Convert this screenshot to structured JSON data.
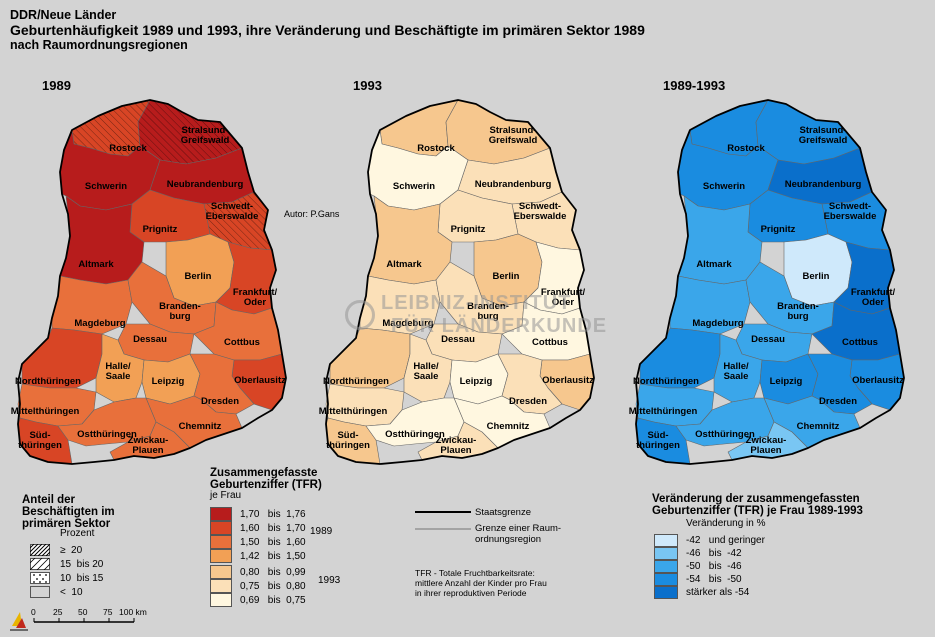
{
  "header": {
    "region": "DDR/Neue Länder",
    "title": "Geburtenhäufigkeit 1989 und 1993, ihre Veränderung und Beschäftigte im primären Sektor 1989",
    "subtitle": "nach Raumordnungsregionen"
  },
  "author": "Autor:   P.Gans",
  "watermark": {
    "line1": "LEIBNIZ-INSTITUT",
    "line2": "FÜR LÄNDERKUNDE"
  },
  "maps": [
    {
      "key": "m1989",
      "title": "1989"
    },
    {
      "key": "m1993",
      "title": "1993"
    },
    {
      "key": "mchg",
      "title": "1989-1993"
    }
  ],
  "regions": [
    {
      "id": "rostock",
      "label": "Rostock",
      "tfr89": "1,60-1,70",
      "tfr93": "0,80-0,99",
      "chg": "-54 bis -50",
      "agri": ">=20"
    },
    {
      "id": "stralsund",
      "label": "Stralsund-\nGreifswald",
      "tfr89": "1,70-1,76",
      "tfr93": "0,80-0,99",
      "chg": "-54 bis -50",
      "agri": ">=20"
    },
    {
      "id": "schwerin",
      "label": "Schwerin",
      "tfr89": "1,70-1,76",
      "tfr93": "0,69-0,75",
      "chg": "-54 bis -50"
    },
    {
      "id": "neubrandenburg",
      "label": "Neubrandenburg",
      "tfr89": "1,70-1,76",
      "tfr93": "0,75-0,80",
      "chg": "stärker als -54"
    },
    {
      "id": "schwedt",
      "label": "Schwedt-\nEberswalde",
      "tfr89": "1,60-1,70",
      "tfr93": "0,75-0,80",
      "chg": "-54 bis -50",
      "agri": ">=20"
    },
    {
      "id": "prignitz",
      "label": "Prignitz",
      "tfr89": "1,60-1,70",
      "tfr93": "0,75-0,80",
      "chg": "-54 bis -50"
    },
    {
      "id": "altmark",
      "label": "Altmark",
      "tfr89": "1,70-1,76",
      "tfr93": "0,80-0,99",
      "chg": "-50 bis -46"
    },
    {
      "id": "berlin",
      "label": "Berlin",
      "tfr89": "1,42-1,50",
      "tfr93": "0,80-0,99",
      "chg": "-42 und geringer"
    },
    {
      "id": "frankfurt",
      "label": "Frankfurt/\nOder",
      "tfr89": "1,60-1,70",
      "tfr93": "0,69-0,75",
      "chg": "stärker als -54"
    },
    {
      "id": "magdeburg",
      "label": "Magdeburg",
      "tfr89": "1,50-1,60",
      "tfr93": "0,75-0,80",
      "chg": "-50 bis -46"
    },
    {
      "id": "brandenburg",
      "label": "Branden-\nburg",
      "tfr89": "1,50-1,60",
      "tfr93": "0,75-0,80",
      "chg": "-50 bis -46"
    },
    {
      "id": "dessau",
      "label": "Dessau",
      "tfr89": "1,50-1,60",
      "tfr93": "0,75-0,80",
      "chg": "-50 bis -46"
    },
    {
      "id": "cottbus",
      "label": "Cottbus",
      "tfr89": "1,50-1,60",
      "tfr93": "0,69-0,75",
      "chg": "stärker als -54"
    },
    {
      "id": "nordthueringen",
      "label": "Nordthüringen",
      "tfr89": "1,60-1,70",
      "tfr93": "0,80-0,99",
      "chg": "-54 bis -50"
    },
    {
      "id": "halle",
      "label": "Halle/\nSaale",
      "tfr89": "1,42-1,50",
      "tfr93": "0,75-0,80",
      "chg": "-50 bis -46"
    },
    {
      "id": "leipzig",
      "label": "Leipzig",
      "tfr89": "1,42-1,50",
      "tfr93": "0,69-0,75",
      "chg": "-54 bis -50"
    },
    {
      "id": "oberlausitz",
      "label": "Oberlausitz",
      "tfr89": "1,60-1,70",
      "tfr93": "0,80-0,99",
      "chg": "-54 bis -50"
    },
    {
      "id": "dresden",
      "label": "Dresden",
      "tfr89": "1,50-1,60",
      "tfr93": "0,75-0,80",
      "chg": "-54 bis -50"
    },
    {
      "id": "mittelthueringen",
      "label": "Mittelthüringen",
      "tfr89": "1,50-1,60",
      "tfr93": "0,75-0,80",
      "chg": "-50 bis -46"
    },
    {
      "id": "chemnitz",
      "label": "Chemnitz",
      "tfr89": "1,50-1,60",
      "tfr93": "0,69-0,75",
      "chg": "-50 bis -46"
    },
    {
      "id": "suedthueringen",
      "label": "Süd-\nthüringen",
      "tfr89": "1,60-1,70",
      "tfr93": "0,80-0,99",
      "chg": "-54 bis -50"
    },
    {
      "id": "ostthueringen",
      "label": "Ostthüringen",
      "tfr89": "1,50-1,60",
      "tfr93": "0,69-0,75",
      "chg": "-50 bis -46"
    },
    {
      "id": "zwickau",
      "label": "Zwickau-\nPlauen",
      "tfr89": "1,50-1,60",
      "tfr93": "0,75-0,80",
      "chg": "-46 bis -42"
    }
  ],
  "legend_agri": {
    "title": "Anteil der\nBeschäftigten im\nprimären Sektor",
    "unit": "Prozent",
    "rows": [
      {
        "label": "≥  20",
        "pattern": "dense"
      },
      {
        "label": "15  bis 20",
        "pattern": "medium"
      },
      {
        "label": "10  bis 15",
        "pattern": "dots"
      },
      {
        "label": "<  10",
        "pattern": "none"
      }
    ]
  },
  "scale": {
    "ticks": [
      "0",
      "25",
      "50",
      "75",
      "100 km"
    ]
  },
  "legend_tfr": {
    "title": "Zusammengefasste\nGeburtenziffer (TFR)",
    "unit": "je Frau",
    "year1989": "1989",
    "year1993": "1993",
    "rows1989": [
      {
        "label": "1,70   bis  1,76",
        "color": "#b71c1c"
      },
      {
        "label": "1,60   bis  1,70",
        "color": "#d84525"
      },
      {
        "label": "1,50   bis  1,60",
        "color": "#e8703b"
      },
      {
        "label": "1,42   bis  1,50",
        "color": "#f2a055"
      }
    ],
    "rows1993": [
      {
        "label": "0,80   bis  0,99",
        "color": "#f6c78e"
      },
      {
        "label": "0,75   bis  0,80",
        "color": "#fbe0b8"
      },
      {
        "label": "0,69   bis  0,75",
        "color": "#fff7e0"
      }
    ]
  },
  "legend_lines": {
    "staatsgrenze": "Staatsgrenze",
    "grenze": "Grenze einer Raum-\nordnungsregion",
    "tfr_note": "TFR - Totale Fruchtbarkeitsrate:\nmittlere Anzahl der Kinder pro Frau\nin ihrer reproduktiven Periode"
  },
  "legend_change": {
    "title": "Veränderung der zusammengefassten\nGeburtenziffer (TFR) je Frau 1989-1993",
    "unit": "Veränderung in %",
    "rows": [
      {
        "label": "-42   und geringer",
        "color": "#cfe9fb"
      },
      {
        "label": "-46   bis  -42",
        "color": "#79c6f3"
      },
      {
        "label": "-50   bis  -46",
        "color": "#3aa6ea"
      },
      {
        "label": "-54   bis  -50",
        "color": "#1a8ce0"
      },
      {
        "label": "stärker als -54",
        "color": "#0a6fcb"
      }
    ]
  },
  "colors": {
    "tfr89": {
      "1,70-1,76": "#b71c1c",
      "1,60-1,70": "#d84525",
      "1,50-1,60": "#e8703b",
      "1,42-1,50": "#f2a055"
    },
    "tfr93": {
      "0,80-0,99": "#f6c78e",
      "0,75-0,80": "#fbe0b8",
      "0,69-0,75": "#fff7e0"
    },
    "chg": {
      "-42 und geringer": "#cfe9fb",
      "-46 bis -42": "#79c6f3",
      "-50 bis -46": "#3aa6ea",
      "-54 bis -50": "#1a8ce0",
      "stärker als -54": "#0a6fcb"
    }
  }
}
